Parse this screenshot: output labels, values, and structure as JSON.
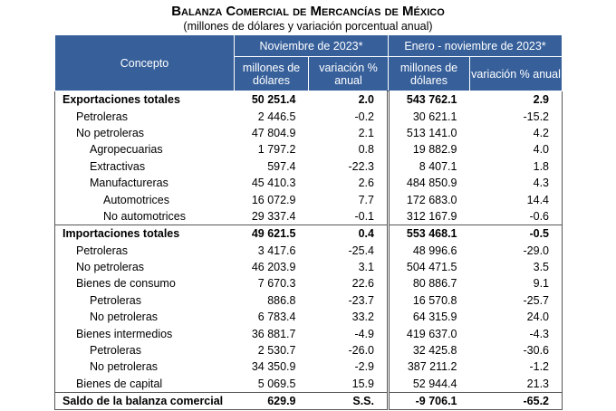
{
  "header": {
    "title": "Balanza Comercial de Mercancías de México",
    "subtitle": "(millones de dólares y variación porcentual anual)"
  },
  "table": {
    "concept_header": "Concepto",
    "period_headers": [
      "Noviembre de 2023*",
      "Enero - noviembre de 2023*"
    ],
    "sub_headers": [
      "millones de dólares",
      "variación % anual",
      "millones de dólares",
      "variación % anual"
    ],
    "rows": [
      [
        "Exportaciones totales",
        "50 251.4",
        "2.0",
        "543 762.1",
        "2.9"
      ],
      [
        "Petroleras",
        "2 446.5",
        "-0.2",
        "30 621.1",
        "-15.2"
      ],
      [
        "No petroleras",
        "47 804.9",
        "2.1",
        "513 141.0",
        "4.2"
      ],
      [
        "Agropecuarias",
        "1 797.2",
        "0.8",
        "19 882.9",
        "4.0"
      ],
      [
        "Extractivas",
        "597.4",
        "-22.3",
        "8 407.1",
        "1.8"
      ],
      [
        "Manufactureras",
        "45 410.3",
        "2.6",
        "484 850.9",
        "4.3"
      ],
      [
        "Automotrices",
        "16 072.9",
        "7.7",
        "172 683.0",
        "14.4"
      ],
      [
        "No automotrices",
        "29 337.4",
        "-0.1",
        "312 167.9",
        "-0.6"
      ],
      [
        "Importaciones totales",
        "49 621.5",
        "0.4",
        "553 468.1",
        "-0.5"
      ],
      [
        "Petroleras",
        "3 417.6",
        "-25.4",
        "48 996.6",
        "-29.0"
      ],
      [
        "No petroleras",
        "46 203.9",
        "3.1",
        "504 471.5",
        "3.5"
      ],
      [
        "Bienes de consumo",
        "7 670.3",
        "22.6",
        "80 886.7",
        "9.1"
      ],
      [
        "Petroleras",
        "886.8",
        "-23.7",
        "16 570.8",
        "-25.7"
      ],
      [
        "No petroleras",
        "6 783.4",
        "33.2",
        "64 315.9",
        "24.0"
      ],
      [
        "Bienes intermedios",
        "36 881.7",
        "-4.9",
        "419 637.0",
        "-4.3"
      ],
      [
        "Petroleras",
        "2 530.7",
        "-26.0",
        "32 425.8",
        "-30.6"
      ],
      [
        "No petroleras",
        "34 350.9",
        "-2.9",
        "387 211.2",
        "-1.2"
      ],
      [
        "Bienes de capital",
        "5 069.5",
        "15.9",
        "52 944.4",
        "21.3"
      ],
      [
        "Saldo de la balanza comercial",
        "629.9",
        "S.S.",
        "-9 706.1",
        "-65.2"
      ]
    ]
  }
}
